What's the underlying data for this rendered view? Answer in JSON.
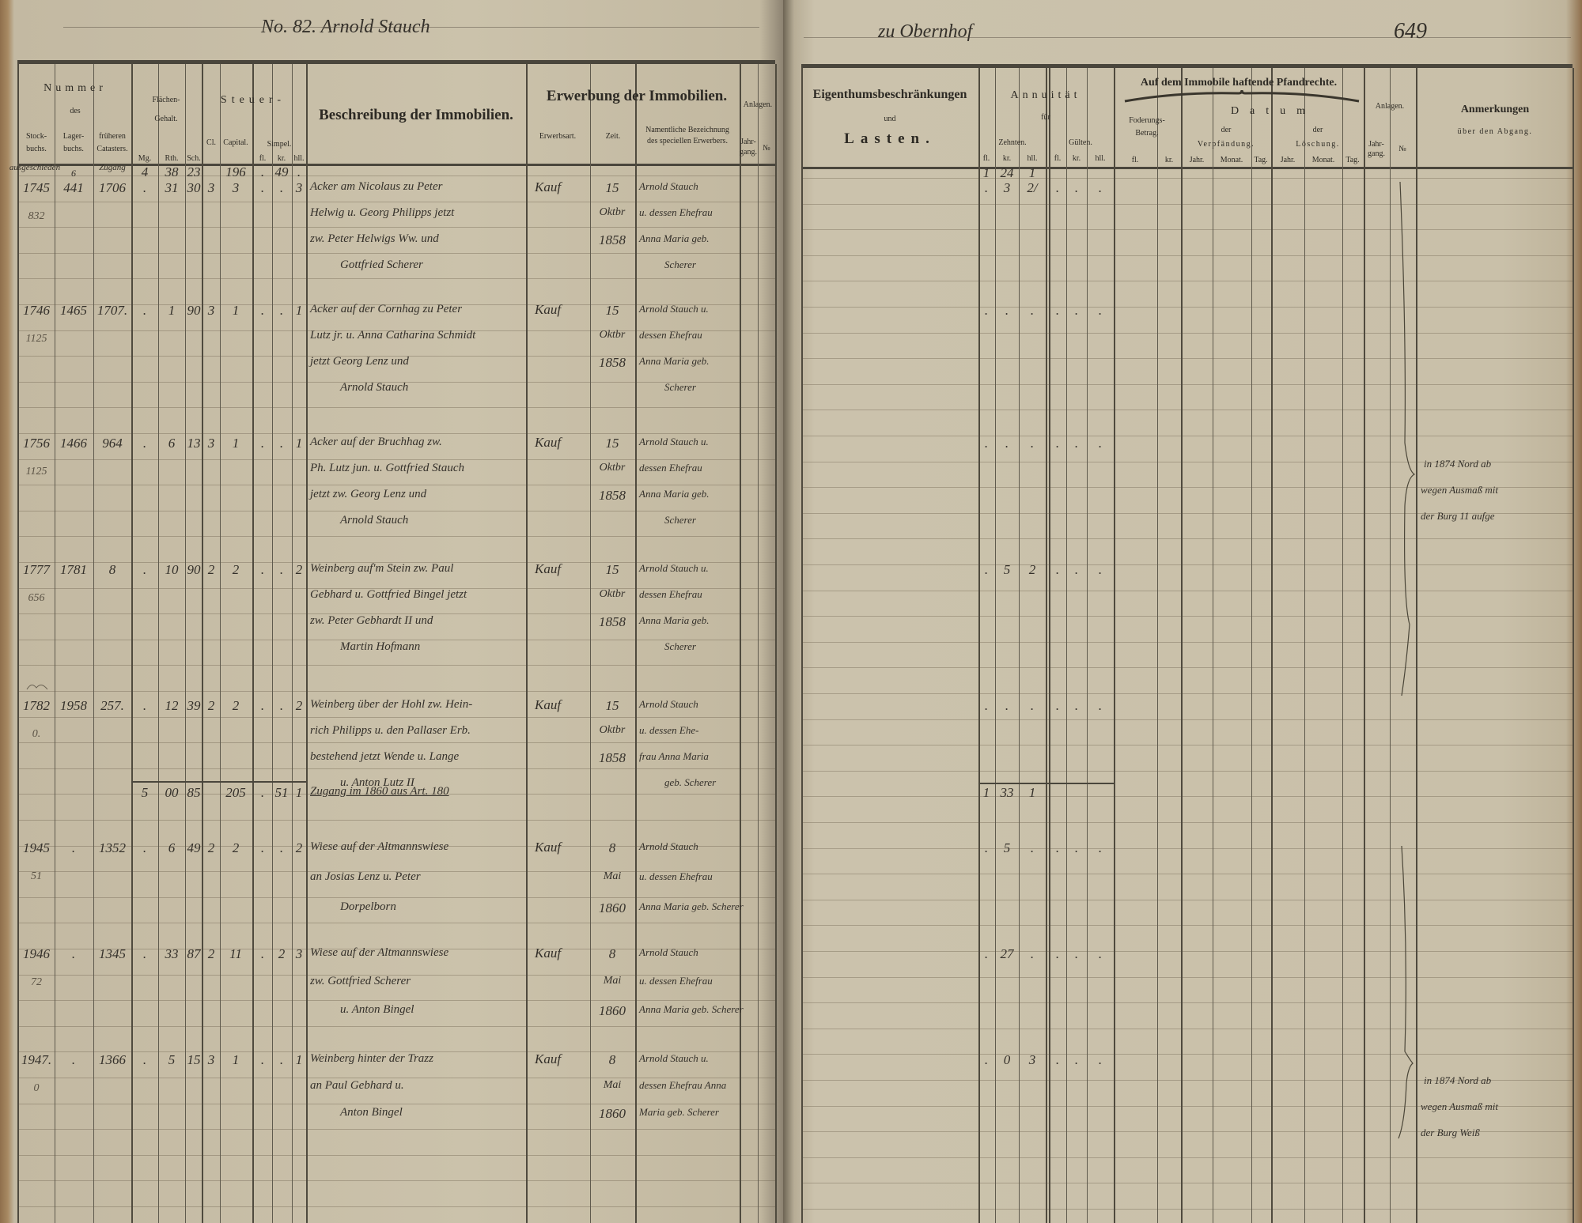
{
  "left_page": {
    "title": "No. 82. Arnold Stauch",
    "header": {
      "nummer": "Nummer",
      "des": "des",
      "stockbuch": [
        "Stock-",
        "buchs."
      ],
      "lagerbuch": [
        "Lager-",
        "buchs."
      ],
      "frueheren": [
        "früheren",
        "Catasters."
      ],
      "flaechen": [
        "Flächen-",
        "Gehalt."
      ],
      "mg": "Mg.",
      "rth": "Rth.",
      "sch": "Sch.",
      "steuer": "Steuer-",
      "cl": "Cl.",
      "capital": "Capital.",
      "simpel": "Simpel.",
      "fl": "fl.",
      "kr": "kr.",
      "hll": "hll.",
      "beschreibung": "Beschreibung der Immobilien.",
      "erwerbung": "Erwerbung der Immobilien.",
      "erwerbsart": "Erwerbsart.",
      "zeit": "Zeit.",
      "namentliche": [
        "Namentliche Bezeichnung",
        "des speciellen Erwerbers."
      ],
      "anlagen": "Anlagen.",
      "jahrgang": [
        "Jahr-",
        "gang."
      ],
      "no": "№"
    },
    "carry_forward": {
      "stock": "ausgeschieden",
      "lager": "6",
      "frueher": "Zugang",
      "mg": "4",
      "rth": "38",
      "sch": "23",
      "capital": "196",
      "fl": ".",
      "kr": "49",
      "hll": "."
    },
    "entries": [
      {
        "stock": "1745",
        "stock_note": "832",
        "lager": "441",
        "frueher": "1706",
        "mg": ".",
        "rth": "31",
        "sch": "30",
        "cl": "3",
        "capital": "3",
        "fl": ".",
        "kr": ".",
        "hll": "3",
        "description": [
          "Acker am Nicolaus zu Peter",
          "Helwig u. Georg Philipps jetzt",
          "zw. Peter Helwigs Ww. und",
          "Gottfried Scherer"
        ],
        "erwerbsart": "Kauf",
        "zeit": [
          "15",
          "Oktbr",
          "1858"
        ],
        "erwerber": [
          "Arnold Stauch",
          "u. dessen Ehefrau",
          "Anna Maria geb.",
          "Scherer"
        ]
      },
      {
        "stock": "1746",
        "stock_note": "1125",
        "lager": "1465",
        "frueher": "1707.",
        "mg": ".",
        "rth": "1",
        "sch": "90",
        "cl": "3",
        "capital": "1",
        "fl": ".",
        "kr": ".",
        "hll": "1",
        "description": [
          "Acker auf der Cornhag zu Peter",
          "Lutz jr. u. Anna Catharina Schmidt",
          "jetzt Georg Lenz und",
          "Arnold Stauch"
        ],
        "erwerbsart": "Kauf",
        "zeit": [
          "15",
          "Oktbr",
          "1858"
        ],
        "erwerber": [
          "Arnold Stauch u.",
          "dessen Ehefrau",
          "Anna Maria geb.",
          "Scherer"
        ]
      },
      {
        "stock": "1756",
        "stock_note": "1125",
        "lager": "1466",
        "frueher": "964",
        "mg": ".",
        "rth": "6",
        "sch": "13",
        "cl": "3",
        "capital": "1",
        "fl": ".",
        "kr": ".",
        "hll": "1",
        "description": [
          "Acker auf der Bruchhag zw.",
          "Ph. Lutz jun. u. Gottfried Stauch",
          "jetzt zw. Georg Lenz und",
          "Arnold Stauch"
        ],
        "erwerbsart": "Kauf",
        "zeit": [
          "15",
          "Oktbr",
          "1858"
        ],
        "erwerber": [
          "Arnold Stauch u.",
          "dessen Ehefrau",
          "Anna Maria geb.",
          "Scherer"
        ]
      },
      {
        "stock": "1777",
        "stock_note": "656",
        "lager": "1781",
        "frueher": "8",
        "mg": ".",
        "rth": "10",
        "sch": "90",
        "cl": "2",
        "capital": "2",
        "fl": ".",
        "kr": ".",
        "hll": "2",
        "description": [
          "Weinberg auf'm Stein zw. Paul",
          "Gebhard u. Gottfried Bingel jetzt",
          "zw. Peter Gebhardt II und",
          "Martin Hofmann"
        ],
        "erwerbsart": "Kauf",
        "zeit": [
          "15",
          "Oktbr",
          "1858"
        ],
        "erwerber": [
          "Arnold Stauch u.",
          "dessen Ehefrau",
          "Anna Maria geb.",
          "Scherer"
        ]
      },
      {
        "stock": "1782",
        "stock_note": "0.",
        "lager": "1958",
        "frueher": "257.",
        "mg": ".",
        "rth": "12",
        "sch": "39",
        "cl": "2",
        "capital": "2",
        "fl": ".",
        "kr": ".",
        "hll": "2",
        "description": [
          "Weinberg über der Hohl zw. Hein-",
          "rich Philipps u. den Pallaser Erb.",
          "bestehend jetzt Wende u. Lange",
          "u. Anton Lutz II"
        ],
        "erwerbsart": "Kauf",
        "zeit": [
          "15",
          "Oktbr",
          "1858"
        ],
        "erwerber": [
          "Arnold Stauch",
          "u. dessen Ehe-",
          "frau Anna Maria",
          "geb. Scherer"
        ]
      },
      {
        "stock": "1945",
        "stock_note": "51",
        "lager": ".",
        "frueher": "1352",
        "mg": ".",
        "rth": "6",
        "sch": "49",
        "cl": "2",
        "capital": "2",
        "fl": ".",
        "kr": ".",
        "hll": "2",
        "description": [
          "Wiese auf der Altmannswiese",
          "an Josias Lenz u. Peter",
          "Dorpelborn"
        ],
        "erwerbsart": "Kauf",
        "zeit": [
          "8",
          "Mai",
          "1860"
        ],
        "erwerber": [
          "Arnold Stauch",
          "u. dessen Ehefrau",
          "Anna Maria geb. Scherer"
        ]
      },
      {
        "stock": "1946",
        "stock_note": "72",
        "lager": ".",
        "frueher": "1345",
        "mg": ".",
        "rth": "33",
        "sch": "87",
        "cl": "2",
        "capital": "11",
        "fl": ".",
        "kr": "2",
        "hll": "3",
        "description": [
          "Wiese auf der Altmannswiese",
          "zw. Gottfried Scherer",
          "u. Anton Bingel"
        ],
        "erwerbsart": "Kauf",
        "zeit": [
          "8",
          "Mai",
          "1860"
        ],
        "erwerber": [
          "Arnold Stauch",
          "u. dessen Ehefrau",
          "Anna Maria geb. Scherer"
        ]
      },
      {
        "stock": "1947.",
        "stock_note": "0",
        "lager": ".",
        "frueher": "1366",
        "mg": ".",
        "rth": "5",
        "sch": "15",
        "cl": "3",
        "capital": "1",
        "fl": ".",
        "kr": ".",
        "hll": "1",
        "description": [
          "Weinberg hinter der Trazz",
          "an Paul Gebhard u.",
          "Anton Bingel"
        ],
        "erwerbsart": "Kauf",
        "zeit": [
          "8",
          "Mai",
          "1860"
        ],
        "erwerber": [
          "Arnold Stauch u.",
          "dessen Ehefrau Anna",
          "Maria geb. Scherer"
        ]
      }
    ],
    "totals": {
      "mg": "5",
      "rth": "00",
      "sch": "85",
      "capital": "205",
      "fl": ".",
      "kr": "51",
      "hll": "1",
      "note": "Zugang im 1860 aus Art. 180"
    }
  },
  "right_page": {
    "title": "zu Obernhof",
    "page_number": "649",
    "header": {
      "eigenthum": "Eigenthumsbeschränkungen",
      "und": "und",
      "lasten": "Lasten.",
      "annuitaet": "Annuität",
      "fuer": "für",
      "zehnten": "Zehnten.",
      "gueltes": "Gülten.",
      "fl": "fl.",
      "kr": "kr.",
      "hll": "hll.",
      "pfandrechte": "Auf dem Immobile haftende Pfandrechte.",
      "foderung": [
        "Foderungs-",
        "Betrag."
      ],
      "datum": "Datum",
      "der": "der",
      "verpfaendung": "Verpfändung.",
      "loeschung": "Löschung.",
      "jahr": "Jahr.",
      "monat": "Monat.",
      "tag": "Tag.",
      "anlagen": "Anlagen.",
      "jahrgang": [
        "Jahr-",
        "gang."
      ],
      "no": "№",
      "anmerkungen": "Anmerkungen",
      "ueber": "über den Abgang."
    },
    "carry_forward": {
      "z_fl": "1",
      "z_kr": "24",
      "z_hll": "1"
    },
    "annuities": [
      {
        "z_fl": ".",
        "z_kr": "3",
        "z_hll": "2/",
        "g_fl": ".",
        "g_kr": ".",
        "g_hll": "."
      },
      {
        "z_fl": ".",
        "z_kr": ".",
        "z_hll": ".",
        "g_fl": ".",
        "g_kr": ".",
        "g_hll": "."
      },
      {
        "z_fl": ".",
        "z_kr": ".",
        "z_hll": ".",
        "g_fl": ".",
        "g_kr": ".",
        "g_hll": "."
      },
      {
        "z_fl": ".",
        "z_kr": "5",
        "z_hll": "2",
        "g_fl": ".",
        "g_kr": ".",
        "g_hll": "."
      },
      {
        "z_fl": ".",
        "z_kr": ".",
        "z_hll": ".",
        "g_fl": ".",
        "g_kr": ".",
        "g_hll": "."
      },
      {
        "z_fl": ".",
        "z_kr": "5",
        "z_hll": ".",
        "g_fl": ".",
        "g_kr": ".",
        "g_hll": "."
      },
      {
        "z_fl": ".",
        "z_kr": "27",
        "z_hll": ".",
        "g_fl": ".",
        "g_kr": ".",
        "g_hll": "."
      },
      {
        "z_fl": ".",
        "z_kr": "0",
        "z_hll": "3",
        "g_fl": ".",
        "g_kr": ".",
        "g_hll": "."
      }
    ],
    "annuity_totals": {
      "z_fl": "1",
      "z_kr": "33",
      "z_hll": "1"
    },
    "remarks": [
      {
        "entry": 2,
        "lines": [
          "in 1874 Nord ab",
          "wegen Ausmaß mit",
          "der Burg 11 aufge"
        ]
      },
      {
        "entry": 7,
        "lines": [
          "in 1874 Nord ab",
          "wegen Ausmaß mit",
          "der Burg Weiß"
        ]
      }
    ]
  },
  "colors": {
    "paper": "#c9c0a9",
    "ink": "#34302a",
    "print": "#2d2a24",
    "binding": "#8f6f4c"
  }
}
